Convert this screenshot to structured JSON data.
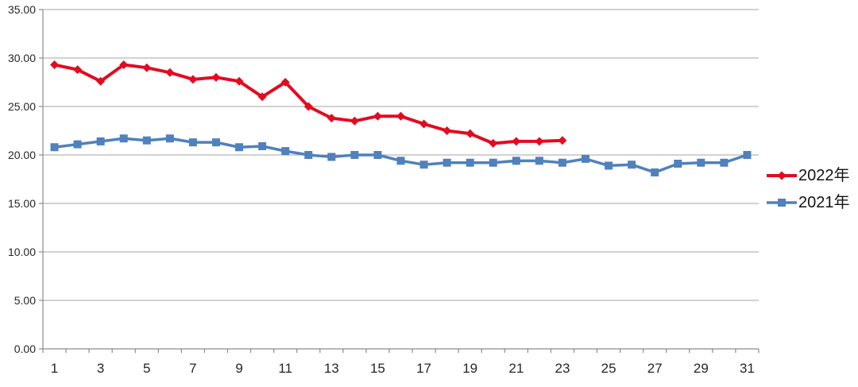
{
  "chart_data": {
    "type": "line",
    "title": "",
    "xlabel": "",
    "ylabel": "",
    "categories": [
      1,
      2,
      3,
      4,
      5,
      6,
      7,
      8,
      9,
      10,
      11,
      12,
      13,
      14,
      15,
      16,
      17,
      18,
      19,
      20,
      21,
      22,
      23,
      24,
      25,
      26,
      27,
      28,
      29,
      30,
      31
    ],
    "series": [
      {
        "name": "2022年",
        "color": "#E30B20",
        "marker": "diamond",
        "line_width": 4,
        "values": [
          29.3,
          28.8,
          27.6,
          29.3,
          29.0,
          28.5,
          27.8,
          28.0,
          27.6,
          26.0,
          27.5,
          25.0,
          23.8,
          23.5,
          24.0,
          24.0,
          23.2,
          22.5,
          22.2,
          21.2,
          21.4,
          21.4,
          21.5
        ]
      },
      {
        "name": "2021年",
        "color": "#4F81BD",
        "marker": "square",
        "line_width": 3.5,
        "values": [
          20.8,
          21.1,
          21.4,
          21.7,
          21.5,
          21.7,
          21.3,
          21.3,
          20.8,
          20.9,
          20.4,
          20.0,
          19.8,
          20.0,
          20.0,
          19.4,
          19.0,
          19.2,
          19.2,
          19.2,
          19.4,
          19.4,
          19.2,
          19.6,
          18.9,
          19.0,
          18.2,
          19.1,
          19.2,
          19.2,
          20.0
        ]
      }
    ],
    "ylim": [
      0,
      35
    ],
    "y_tick_step": 5,
    "y_axis_labels": [
      "0.00",
      "5.00",
      "10.00",
      "15.00",
      "20.00",
      "25.00",
      "30.00",
      "35.00"
    ],
    "x_axis_labels": [
      "1",
      "3",
      "5",
      "7",
      "9",
      "11",
      "13",
      "15",
      "17",
      "19",
      "21",
      "23",
      "25",
      "27",
      "29",
      "31"
    ],
    "grid": true,
    "legend_position": "right",
    "colors": {
      "gridline": "#A6A6A6",
      "axis": "#8C8C8C",
      "tick_text": "#262626",
      "background": "#FFFFFF"
    }
  }
}
